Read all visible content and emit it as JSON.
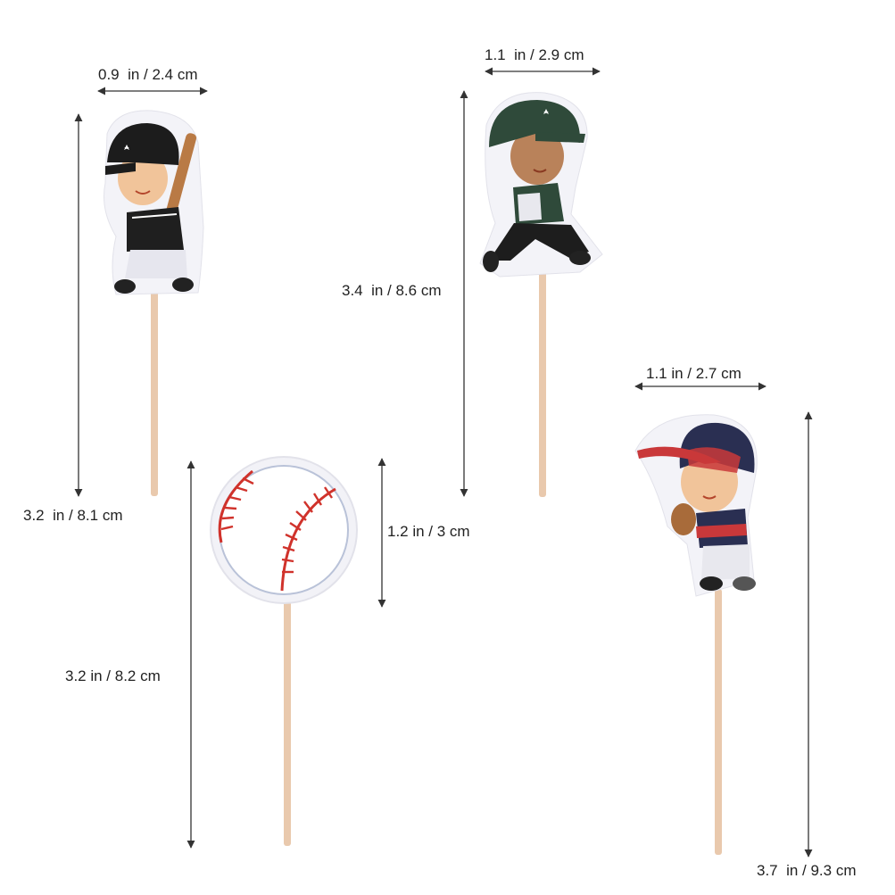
{
  "toppers": {
    "batter": {
      "width_label": "0.9  in / 2.4 cm",
      "height_label": "3.2  in / 8.1 cm"
    },
    "runner": {
      "width_label": "1.1  in / 2.9 cm",
      "height_label": "3.4  in / 8.6 cm"
    },
    "baseball": {
      "width_label": "1.2 in / 3 cm",
      "height_label": "3.2 in / 8.2 cm"
    },
    "catcher": {
      "width_label": "1.1 in / 2.7 cm",
      "height_label": "3.7  in / 9.3 cm"
    }
  },
  "colors": {
    "stick": "#e9c9ad",
    "arrow": "#333333",
    "stitch": "#d0322b",
    "helmet_black": "#1c1c1c",
    "helmet_green": "#2f4a3a",
    "cap_navy": "#2a2f52",
    "cap_red": "#c9383a"
  }
}
